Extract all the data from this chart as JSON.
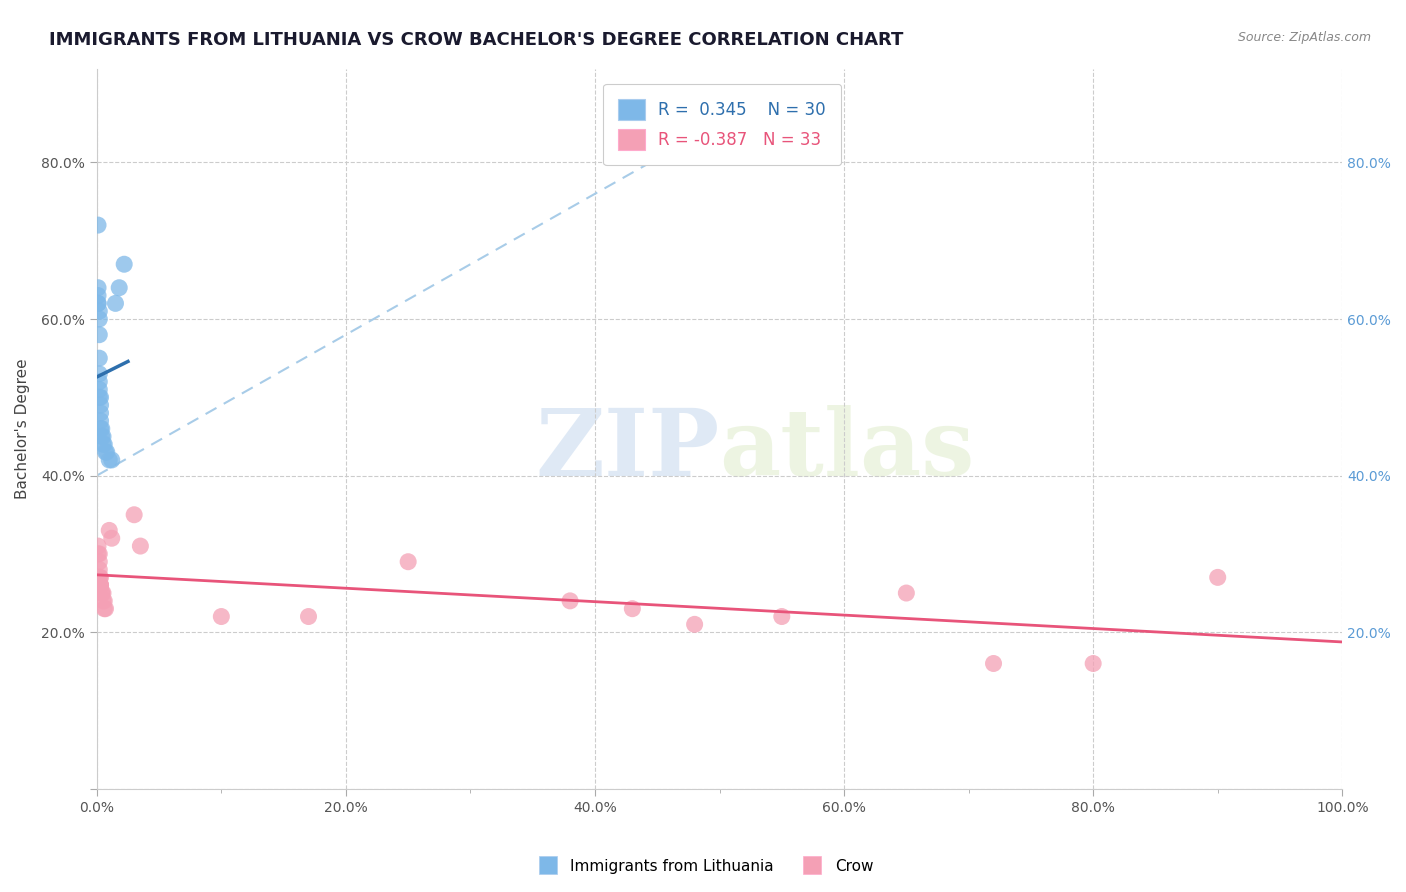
{
  "title": "IMMIGRANTS FROM LITHUANIA VS CROW BACHELOR'S DEGREE CORRELATION CHART",
  "source": "Source: ZipAtlas.com",
  "ylabel": "Bachelor's Degree",
  "legend_blue_label": "Immigrants from Lithuania",
  "legend_pink_label": "Crow",
  "blue_R": 0.345,
  "blue_N": 30,
  "pink_R": -0.387,
  "pink_N": 33,
  "xlim": [
    0.0,
    1.0
  ],
  "ylim": [
    0.0,
    0.92
  ],
  "blue_points_x": [
    0.001,
    0.001,
    0.001,
    0.001,
    0.001,
    0.002,
    0.002,
    0.002,
    0.002,
    0.002,
    0.002,
    0.002,
    0.002,
    0.003,
    0.003,
    0.003,
    0.003,
    0.003,
    0.004,
    0.004,
    0.005,
    0.005,
    0.006,
    0.007,
    0.008,
    0.01,
    0.012,
    0.015,
    0.018,
    0.022
  ],
  "blue_points_y": [
    0.72,
    0.64,
    0.63,
    0.62,
    0.62,
    0.61,
    0.6,
    0.58,
    0.55,
    0.53,
    0.52,
    0.51,
    0.5,
    0.5,
    0.49,
    0.48,
    0.47,
    0.46,
    0.46,
    0.45,
    0.45,
    0.44,
    0.44,
    0.43,
    0.43,
    0.42,
    0.42,
    0.62,
    0.64,
    0.67
  ],
  "pink_points_x": [
    0.001,
    0.001,
    0.002,
    0.002,
    0.002,
    0.002,
    0.002,
    0.003,
    0.003,
    0.003,
    0.003,
    0.004,
    0.004,
    0.005,
    0.005,
    0.006,
    0.006,
    0.007,
    0.01,
    0.012,
    0.03,
    0.035,
    0.1,
    0.17,
    0.25,
    0.38,
    0.43,
    0.48,
    0.55,
    0.65,
    0.72,
    0.8,
    0.9
  ],
  "pink_points_y": [
    0.31,
    0.3,
    0.3,
    0.29,
    0.28,
    0.27,
    0.27,
    0.27,
    0.26,
    0.26,
    0.26,
    0.25,
    0.25,
    0.25,
    0.24,
    0.24,
    0.23,
    0.23,
    0.33,
    0.32,
    0.35,
    0.31,
    0.22,
    0.22,
    0.29,
    0.24,
    0.23,
    0.21,
    0.22,
    0.25,
    0.16,
    0.16,
    0.27
  ],
  "blue_color": "#7EB8E8",
  "pink_color": "#F4A0B5",
  "blue_line_color": "#2E6FAD",
  "pink_line_color": "#E8547A",
  "blue_dash_color": "#A8CCE8",
  "grid_color": "#CCCCCC",
  "background_color": "#FFFFFF",
  "title_color": "#1a1a2e",
  "right_tick_color": "#5B9BD5",
  "title_fontsize": 13,
  "axis_label_fontsize": 11,
  "tick_fontsize": 10,
  "legend_fontsize": 12
}
